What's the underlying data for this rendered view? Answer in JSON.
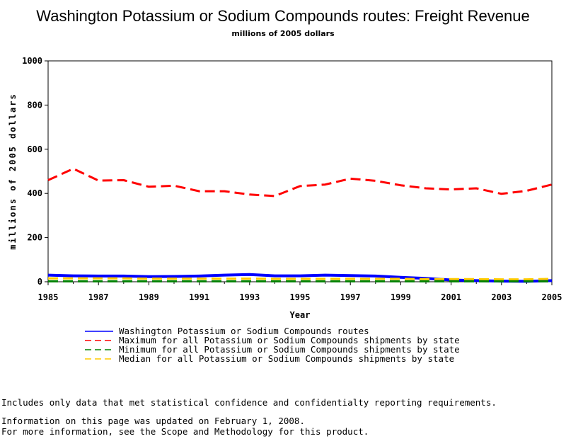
{
  "chart_data": {
    "type": "line",
    "title": "Washington Potassium or Sodium Compounds routes: Freight Revenue",
    "subtitle": "millions of 2005 dollars",
    "xlabel": "Year",
    "ylabel": "millions of 2005 dollars",
    "xlim": [
      1985,
      2005
    ],
    "ylim": [
      0,
      1000
    ],
    "x_ticks": [
      "1985",
      "1987",
      "1989",
      "1991",
      "1993",
      "1995",
      "1997",
      "1999",
      "2001",
      "2003",
      "2005"
    ],
    "y_ticks": [
      "0",
      "200",
      "400",
      "600",
      "800",
      "1000"
    ],
    "grid": false,
    "legend_position": "bottom",
    "x": [
      1985,
      1986,
      1987,
      1988,
      1989,
      1990,
      1991,
      1992,
      1993,
      1994,
      1995,
      1996,
      1997,
      1998,
      1999,
      2000,
      2001,
      2002,
      2003,
      2004,
      2005
    ],
    "series": [
      {
        "name": "Washington Potassium or Sodium Compounds routes",
        "color": "#0000ff",
        "style": "solid",
        "values": [
          30,
          27,
          26,
          26,
          23,
          24,
          26,
          30,
          33,
          27,
          27,
          30,
          28,
          26,
          20,
          15,
          8,
          5,
          3,
          2,
          5
        ]
      },
      {
        "name": "Maximum for all Potassium or Sodium Compounds shipments by state",
        "color": "#ff0000",
        "style": "dashed",
        "values": [
          460,
          512,
          458,
          460,
          430,
          435,
          410,
          410,
          395,
          388,
          433,
          440,
          467,
          457,
          437,
          423,
          418,
          423,
          398,
          412,
          440
        ]
      },
      {
        "name": "Minimum for all Potassium or Sodium Compounds shipments by state",
        "color": "#008000",
        "style": "dashed",
        "values": [
          2,
          2,
          2,
          2,
          2,
          2,
          2,
          2,
          2,
          2,
          2,
          2,
          2,
          2,
          2,
          2,
          2,
          2,
          2,
          2,
          2
        ]
      },
      {
        "name": "Median for all Potassium or Sodium Compounds shipments by state",
        "color": "#ffcc00",
        "style": "dashed",
        "values": [
          15,
          15,
          15,
          15,
          14,
          14,
          14,
          14,
          14,
          13,
          13,
          13,
          13,
          13,
          13,
          12,
          12,
          12,
          11,
          11,
          13
        ]
      }
    ]
  },
  "footnotes": [
    "Includes only data that met statistical confidence and confidentialty reporting requirements.",
    "For more information, see the Scope and Methodology for this product."
  ],
  "updated": "Information on this page was updated on February 1, 2008."
}
